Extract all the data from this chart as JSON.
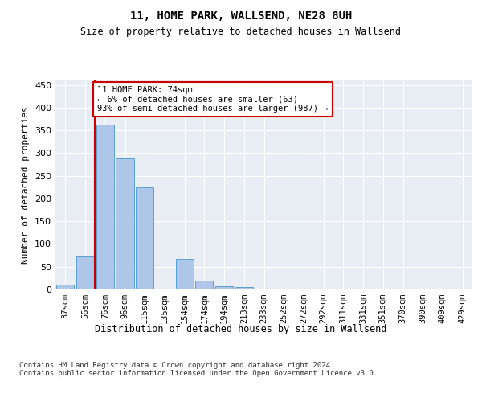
{
  "title": "11, HOME PARK, WALLSEND, NE28 8UH",
  "subtitle": "Size of property relative to detached houses in Wallsend",
  "xlabel": "Distribution of detached houses by size in Wallsend",
  "ylabel": "Number of detached properties",
  "categories": [
    "37sqm",
    "56sqm",
    "76sqm",
    "96sqm",
    "115sqm",
    "135sqm",
    "154sqm",
    "174sqm",
    "194sqm",
    "213sqm",
    "233sqm",
    "252sqm",
    "272sqm",
    "292sqm",
    "311sqm",
    "331sqm",
    "351sqm",
    "370sqm",
    "390sqm",
    "409sqm",
    "429sqm"
  ],
  "values": [
    11,
    72,
    363,
    289,
    224,
    0,
    67,
    20,
    7,
    5,
    0,
    0,
    0,
    0,
    0,
    0,
    0,
    0,
    0,
    0,
    2
  ],
  "bar_color": "#aec6e8",
  "bar_edge_color": "#5a9fd4",
  "marker_line_color": "#cc0000",
  "annotation_text": "11 HOME PARK: 74sqm\n← 6% of detached houses are smaller (63)\n93% of semi-detached houses are larger (987) →",
  "annotation_box_color": "#ffffff",
  "annotation_box_edge_color": "#cc0000",
  "ylim": [
    0,
    460
  ],
  "yticks": [
    0,
    50,
    100,
    150,
    200,
    250,
    300,
    350,
    400,
    450
  ],
  "bg_color": "#e8eef4",
  "footer": "Contains HM Land Registry data © Crown copyright and database right 2024.\nContains public sector information licensed under the Open Government Licence v3.0."
}
